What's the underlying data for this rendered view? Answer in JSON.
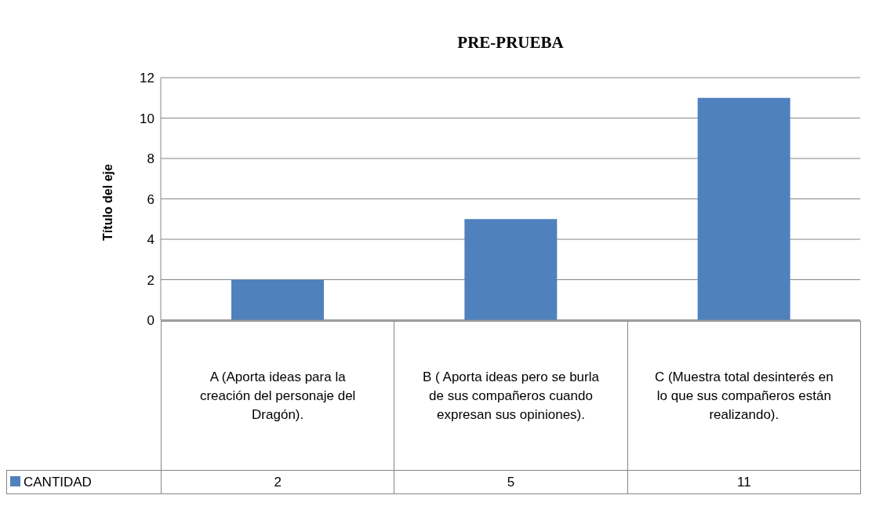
{
  "chart_data": {
    "type": "bar",
    "title": "PRE-PRUEBA",
    "ylabel": "Título del eje",
    "categories": [
      "A (Aporta ideas para la creación del personaje del Dragón).",
      "B ( Aporta ideas  pero se burla de sus compañeros cuando expresan sus opiniones).",
      "C (Muestra total desinterés en lo que sus compañeros están realizando)."
    ],
    "series": [
      {
        "name": "CANTIDAD",
        "color": "#4f81bd",
        "values": [
          2,
          5,
          11
        ]
      }
    ],
    "ylim": [
      0,
      12
    ],
    "yticks": [
      0,
      2,
      4,
      6,
      8,
      10,
      12
    ],
    "grid": "y",
    "legend": "bottom",
    "data_labels": true
  }
}
